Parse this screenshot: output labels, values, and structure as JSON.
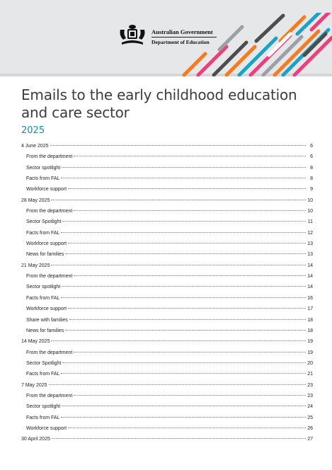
{
  "header": {
    "gov_line1": "Australian Government",
    "gov_line2": "Department of Education",
    "banner_color": "#e6e7e8",
    "stripe_colors": [
      "#f47b20",
      "#e8417a",
      "#1fa0c8",
      "#4d4d4f",
      "#9aa0a6",
      "#ffffff"
    ]
  },
  "title": "Emails to the early childhood education and care sector",
  "year": "2025",
  "accent_color": "#1b8aa5",
  "toc": [
    {
      "label": "4 June 2025",
      "page": "6",
      "level": 0
    },
    {
      "label": "From the department",
      "page": "6",
      "level": 1
    },
    {
      "label": "Sector spotlight",
      "page": "8",
      "level": 1
    },
    {
      "label": "Facts from FAL",
      "page": "8",
      "level": 1
    },
    {
      "label": "Workforce support",
      "page": "9",
      "level": 1
    },
    {
      "label": "28 May 2025",
      "page": "10",
      "level": 0
    },
    {
      "label": "From the department",
      "page": "10",
      "level": 1
    },
    {
      "label": "Sector Spotlight",
      "page": "11",
      "level": 1
    },
    {
      "label": "Facts from FAL",
      "page": "12",
      "level": 1
    },
    {
      "label": "Workforce support",
      "page": "13",
      "level": 1
    },
    {
      "label": "News for families",
      "page": "13",
      "level": 1
    },
    {
      "label": "21 May 2025",
      "page": "14",
      "level": 0
    },
    {
      "label": "From the department",
      "page": "14",
      "level": 1
    },
    {
      "label": "Sector spotlight",
      "page": "14",
      "level": 1
    },
    {
      "label": "Facts from FAL",
      "page": "16",
      "level": 1
    },
    {
      "label": "Workforce support",
      "page": "17",
      "level": 1
    },
    {
      "label": "Share with families",
      "page": "18",
      "level": 1
    },
    {
      "label": "News for families",
      "page": "18",
      "level": 1
    },
    {
      "label": "14 May 2025",
      "page": "19",
      "level": 0
    },
    {
      "label": "From the department",
      "page": "19",
      "level": 1
    },
    {
      "label": "Sector Spotlight",
      "page": "20",
      "level": 1
    },
    {
      "label": "Facts from FAL",
      "page": "21",
      "level": 1
    },
    {
      "label": "7 May 2025",
      "page": "23",
      "level": 0
    },
    {
      "label": "From the department",
      "page": "23",
      "level": 1
    },
    {
      "label": "Sector spotlight",
      "page": "24",
      "level": 1
    },
    {
      "label": "Facts from FAL",
      "page": "25",
      "level": 1
    },
    {
      "label": "Workforce support",
      "page": "26",
      "level": 1
    },
    {
      "label": "30 April 2025",
      "page": "27",
      "level": 0
    }
  ]
}
